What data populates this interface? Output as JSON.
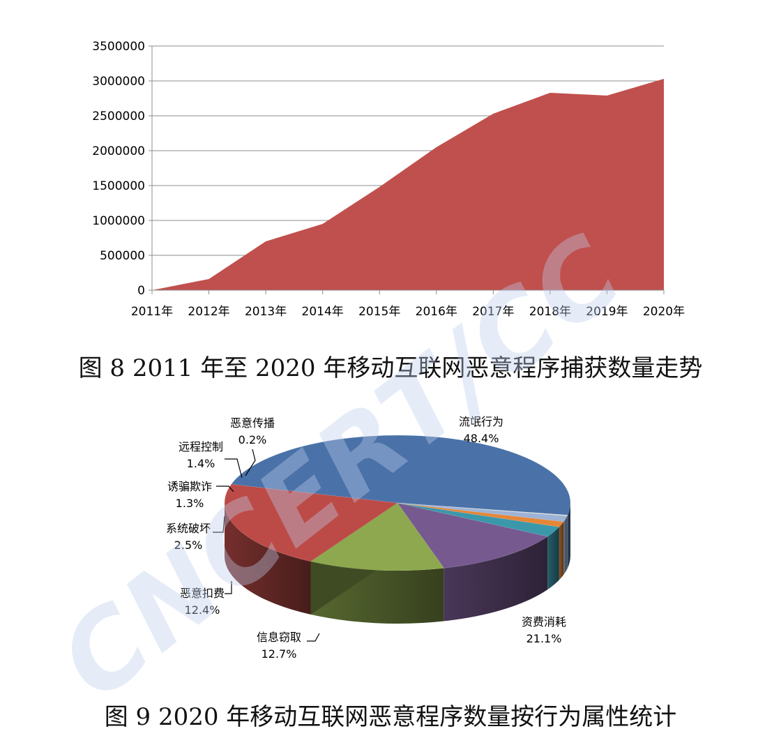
{
  "chart_data": [
    {
      "type": "area",
      "x": [
        "2011年",
        "2012年",
        "2013年",
        "2014年",
        "2015年",
        "2016年",
        "2017年",
        "2018年",
        "2019年",
        "2020年"
      ],
      "values": [
        0,
        160000,
        700000,
        950000,
        1480000,
        2050000,
        2530000,
        2830000,
        2790000,
        3030000
      ],
      "ylim": [
        0,
        3500000
      ],
      "yticks": [
        "0",
        "500000",
        "1000000",
        "1500000",
        "2000000",
        "2500000",
        "3000000",
        "3500000"
      ],
      "grid": true,
      "color": "#C0504D"
    },
    {
      "type": "pie",
      "slices": [
        {
          "label": "流氓行为",
          "value": 48.4,
          "pct": "48.4%",
          "color": "#4A72A8"
        },
        {
          "label": "资费消耗",
          "value": 21.1,
          "pct": "21.1%",
          "color": "#BC4B48"
        },
        {
          "label": "信息窃取",
          "value": 12.7,
          "pct": "12.7%",
          "color": "#8DA84E"
        },
        {
          "label": "恶意扣费",
          "value": 12.4,
          "pct": "12.4%",
          "color": "#76598F"
        },
        {
          "label": "系统破坏",
          "value": 2.5,
          "pct": "2.5%",
          "color": "#3B98AB"
        },
        {
          "label": "诱骗欺诈",
          "value": 1.3,
          "pct": "1.3%",
          "color": "#E58737"
        },
        {
          "label": "远程控制",
          "value": 1.4,
          "pct": "1.4%",
          "color": "#9DB3D6"
        },
        {
          "label": "恶意传播",
          "value": 0.2,
          "pct": "0.2%",
          "color": "#D9D9D9"
        }
      ]
    }
  ],
  "captions": {
    "fig8": "图 8 2011 年至 2020 年移动互联网恶意程序捕获数量走势",
    "fig9": "图 9 2020 年移动互联网恶意程序数量按行为属性统计"
  },
  "watermark": "CNCERT/CC"
}
